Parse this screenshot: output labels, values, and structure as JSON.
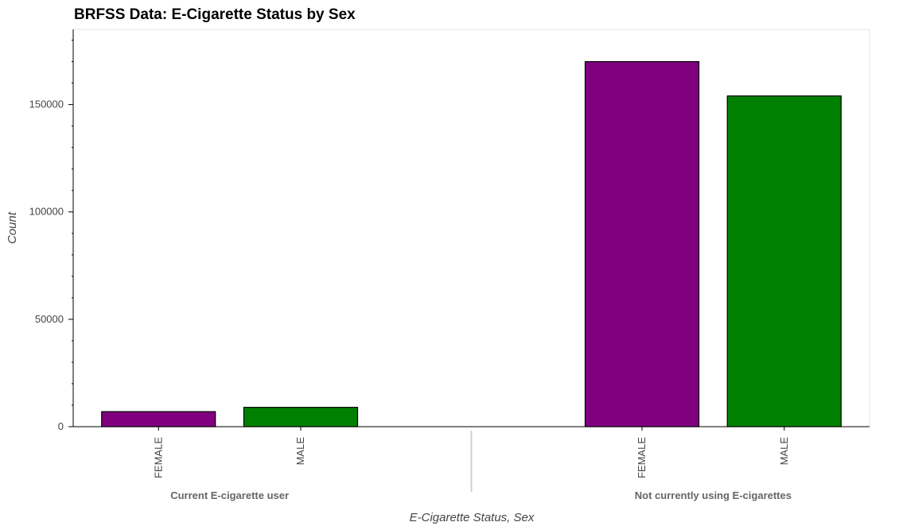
{
  "chart_data": {
    "type": "bar",
    "title": "BRFSS Data: E-Cigarette Status by Sex",
    "xlabel": "E-Cigarette Status, Sex",
    "ylabel": "Count",
    "ylim": [
      0,
      185000
    ],
    "yticks": [
      0,
      50000,
      100000,
      150000
    ],
    "ytick_labels": [
      "0",
      "50000",
      "100000",
      "150000"
    ],
    "groups": [
      {
        "label": "Current E-cigarette user",
        "bars": [
          {
            "category": "FEMALE",
            "value": 7000,
            "color": "#800080"
          },
          {
            "category": "MALE",
            "value": 9000,
            "color": "#008000"
          }
        ]
      },
      {
        "label": "Not currently using E-cigarettes",
        "bars": [
          {
            "category": "FEMALE",
            "value": 170000,
            "color": "#800080"
          },
          {
            "category": "MALE",
            "value": 154000,
            "color": "#008000"
          }
        ]
      }
    ],
    "colors": {
      "FEMALE": "#800080",
      "MALE": "#008000"
    },
    "grid": false,
    "legend": "none"
  }
}
